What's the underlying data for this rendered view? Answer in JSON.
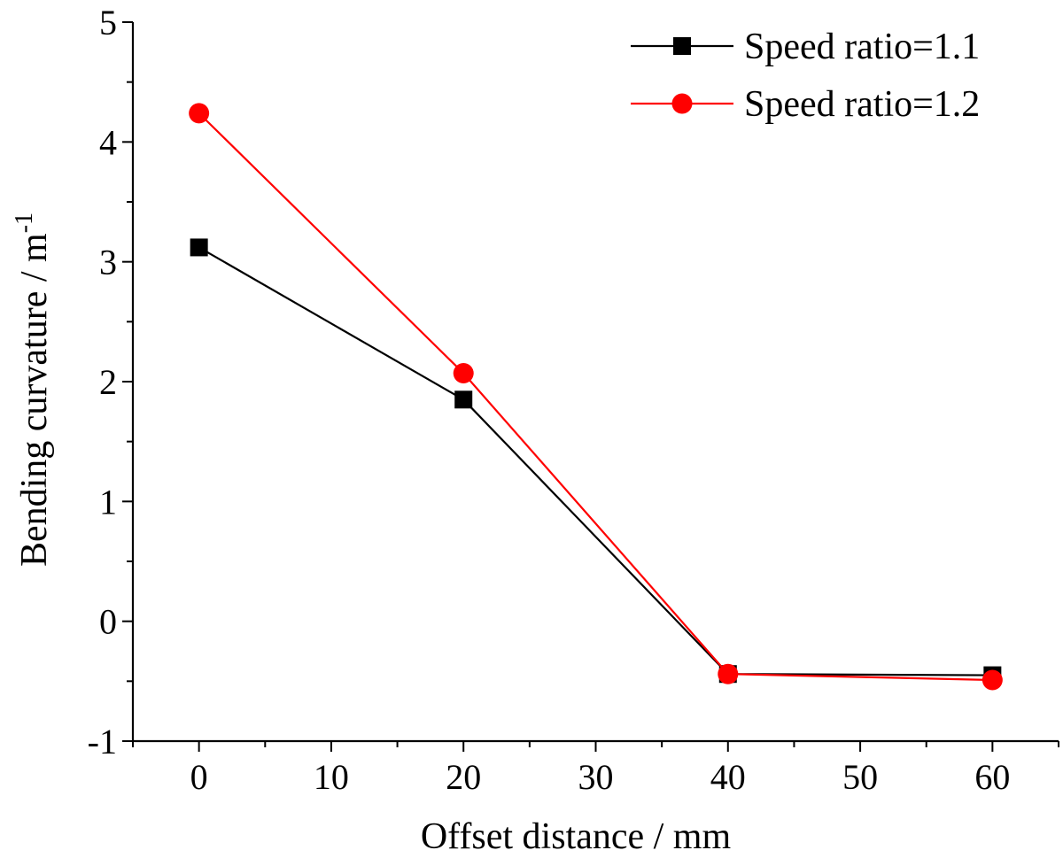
{
  "chart_data": {
    "type": "line",
    "title": "",
    "xlabel": "Offset distance / mm",
    "ylabel": "Bending curvature / m",
    "ylabel_superscript": "-1",
    "xlim": [
      -5,
      65
    ],
    "ylim": [
      -1,
      5
    ],
    "x_ticks": [
      0,
      10,
      20,
      30,
      40,
      50,
      60
    ],
    "y_ticks": [
      -1,
      0,
      1,
      2,
      3,
      4,
      5
    ],
    "x_tick_labels": [
      "0",
      "10",
      "20",
      "30",
      "40",
      "50",
      "60"
    ],
    "y_tick_labels": [
      "-1",
      "0",
      "1",
      "2",
      "3",
      "4",
      "5"
    ],
    "grid": false,
    "legend_position": "top-right",
    "x": [
      0,
      20,
      40,
      60
    ],
    "series": [
      {
        "name": "Speed ratio=1.1",
        "values": [
          3.12,
          1.85,
          -0.44,
          -0.45
        ],
        "color": "#000000",
        "marker": "square"
      },
      {
        "name": "Speed ratio=1.2",
        "values": [
          4.24,
          2.07,
          -0.44,
          -0.49
        ],
        "color": "#ff0000",
        "marker": "circle"
      }
    ]
  }
}
